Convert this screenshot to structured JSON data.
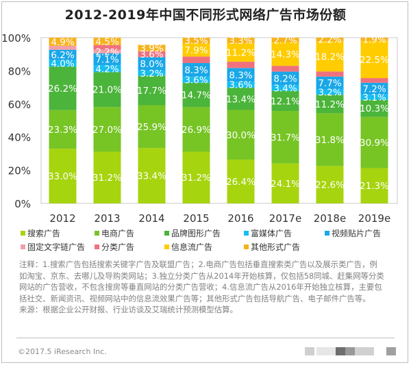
{
  "title": "2012-2019年中国不同形式网络广告市场份额",
  "chart_data": {
    "type": "bar",
    "stacked": true,
    "percent": true,
    "title": "2012-2019年中国不同形式网络广告市场份额",
    "xlabel": "",
    "ylabel": "",
    "ylim": [
      0,
      100
    ],
    "yticks": [
      "0%",
      "20%",
      "40%",
      "60%",
      "80%",
      "100%"
    ],
    "ytick_values": [
      0,
      20,
      40,
      60,
      80,
      100
    ],
    "grid": false,
    "legend_position": "bottom",
    "categories": [
      "2012",
      "2013",
      "2014",
      "2015",
      "2016",
      "2017e",
      "2018e",
      "2019e"
    ],
    "series": [
      {
        "name": "搜索广告",
        "color": "#a6d40e",
        "values": [
          33.0,
          31.2,
          33.4,
          31.2,
          26.4,
          24.1,
          22.6,
          21.3
        ],
        "labels": [
          "33.0%",
          "31.2%",
          "33.4%",
          "31.2%",
          "26.4%",
          "24.1%",
          "22.6%",
          "21.3%"
        ]
      },
      {
        "name": "电商广告",
        "color": "#77c425",
        "values": [
          23.3,
          27.0,
          25.9,
          26.9,
          30.0,
          31.7,
          31.8,
          30.9
        ],
        "labels": [
          "23.3%",
          "27.0%",
          "25.9%",
          "26.9%",
          "30.0%",
          "31.7%",
          "31.8%",
          "30.9%"
        ]
      },
      {
        "name": "品牌图形广告",
        "color": "#4bb43a",
        "values": [
          26.2,
          21.0,
          17.7,
          14.7,
          13.4,
          12.1,
          11.2,
          10.3
        ],
        "labels": [
          "26.2%",
          "21.0%",
          "17.7%",
          "14.7%",
          "13.4%",
          "12.1%",
          "11.2%",
          "10.3%"
        ]
      },
      {
        "name": "富媒体广告",
        "color": "#16bdf0",
        "values": [
          4.0,
          4.2,
          3.2,
          3.6,
          3.6,
          3.4,
          3.2,
          3.1
        ],
        "labels": [
          "4.0%",
          "4.2%",
          "3.2%",
          "3.6%",
          "3.6%",
          "3.4%",
          "3.2%",
          "3.1%"
        ]
      },
      {
        "name": "视频贴片广告",
        "color": "#1aa7e8",
        "values": [
          6.2,
          7.1,
          8.0,
          8.3,
          8.3,
          8.2,
          7.7,
          7.2
        ],
        "labels": [
          "6.2%",
          "7.1%",
          "8.0%",
          "8.3%",
          "8.3%",
          "8.2%",
          "7.7%",
          "7.2%"
        ]
      },
      {
        "name": "固定文字链广告",
        "color": "#f2a0a8",
        "values": [
          2.4,
          2.2,
          0,
          0,
          0,
          0,
          0,
          0
        ],
        "labels": [
          "",
          "2.2%",
          "",
          "",
          "",
          "",
          "",
          ""
        ]
      },
      {
        "name": "分类广告",
        "color": "#f0717e",
        "values": [
          0,
          2.8,
          3.6,
          3.9,
          3.8,
          3.5,
          3.1,
          2.8
        ],
        "labels": [
          "",
          "",
          "3.6%",
          "",
          "",
          "",
          "",
          ""
        ]
      },
      {
        "name": "信息流广告",
        "color": "#ffcc00",
        "values": [
          0,
          0,
          0,
          7.9,
          11.2,
          14.3,
          18.2,
          22.5
        ],
        "labels": [
          "",
          "",
          "",
          "7.9%",
          "11.2%",
          "14.3%",
          "18.2%",
          "22.5%"
        ]
      },
      {
        "name": "其他形式广告",
        "color": "#f7b21c",
        "values": [
          4.9,
          4.5,
          3.9,
          3.5,
          3.3,
          2.7,
          2.2,
          1.9
        ],
        "labels": [
          "4.9%",
          "4.5%",
          "3.9%",
          "3.5%",
          "3.3%",
          "2.7%",
          "2.2%",
          "1.9%"
        ]
      }
    ]
  },
  "legend": [
    {
      "label": "搜索广告",
      "color": "#a6d40e"
    },
    {
      "label": "电商广告",
      "color": "#77c425"
    },
    {
      "label": "品牌图形广告",
      "color": "#4bb43a"
    },
    {
      "label": "富媒体广告",
      "color": "#16bdf0"
    },
    {
      "label": "视频贴片广告",
      "color": "#1aa7e8"
    },
    {
      "label": "固定文字链广告",
      "color": "#f2a0a8"
    },
    {
      "label": "分类广告",
      "color": "#f0717e"
    },
    {
      "label": "信息流广告",
      "color": "#ffcc00"
    },
    {
      "label": "其他形式广告",
      "color": "#f7b21c"
    }
  ],
  "notes": {
    "line1": "注释：1.搜索广告包括搜索关键字广告及联盟广告；2.电商广告包括垂直搜索类广告以及展示类广告，例",
    "line2": "如淘宝、京东、去哪儿及导购类网站；3.独立分类广告从2014年开始核算，仅包括58同城、赶集网等分类",
    "line3": "网站的广告营收，不包含搜房等垂直网站的分类广告营收；4.信息流广告从2016年开始独立核算，主要包",
    "line4": "括社交、新闻资讯、视频网站中的信息流效果广告等；其他形式广告包括导航广告、电子邮件广告等。",
    "line5": "来源：根据企业公开财报、行业访谈及艾瑞统计预测模型估算。"
  },
  "footer": {
    "copyright": "©2017.5 iResearch Inc."
  }
}
